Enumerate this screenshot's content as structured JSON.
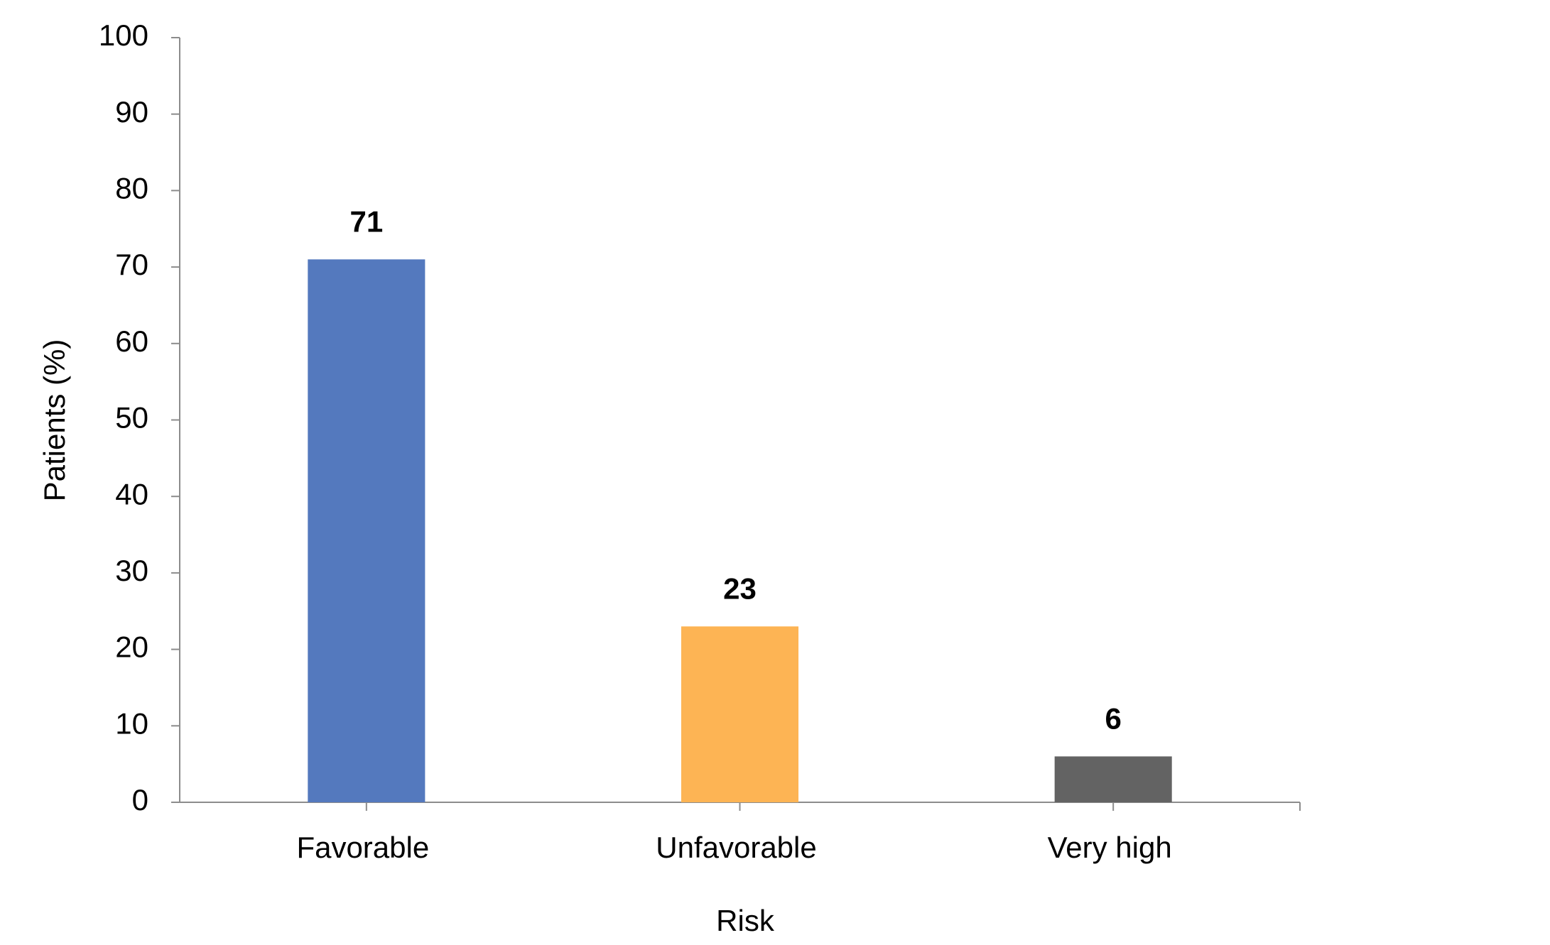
{
  "chart_data": {
    "type": "bar",
    "x_label": "Risk",
    "y_label": "Patients (%)",
    "categories": [
      "Favorable",
      "Unfavorable",
      "Very high"
    ],
    "values": [
      71,
      23,
      6
    ],
    "colors": [
      "#5479be",
      "#fdb454",
      "#636363"
    ],
    "ylim": [
      0,
      100
    ],
    "yticks": [
      0,
      10,
      20,
      30,
      40,
      50,
      60,
      70,
      80,
      90,
      100
    ],
    "grid": false
  }
}
